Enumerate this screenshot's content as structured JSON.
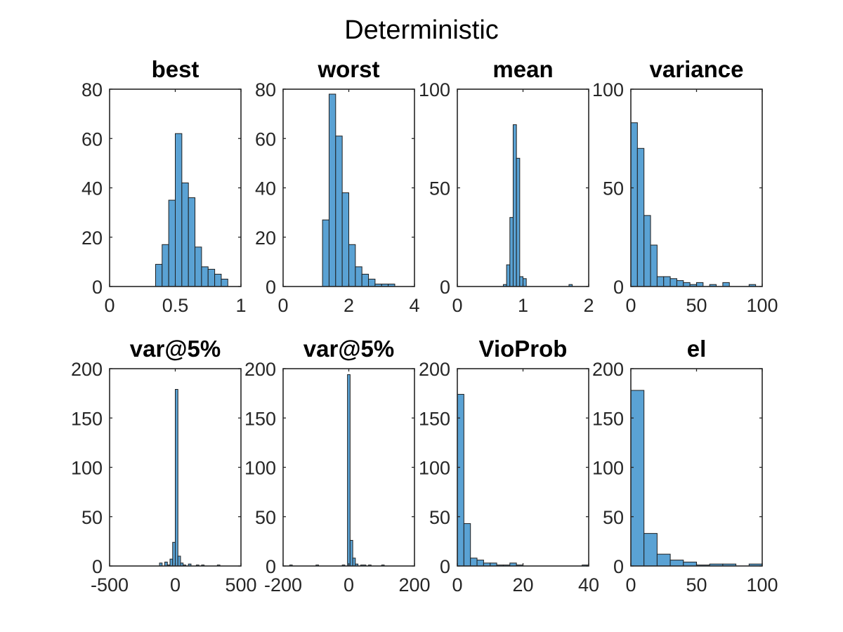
{
  "figure_title": "Deterministic",
  "colors": {
    "bar_fill": "#5aa2d4",
    "bar_edge": "#1f1f1f",
    "axis": "#262626"
  },
  "chart_data": [
    {
      "type": "bar",
      "title": "best",
      "xlim": [
        0,
        1
      ],
      "ylim": [
        0,
        80
      ],
      "xticks": [
        "0",
        "0.5",
        "1"
      ],
      "yticks": [
        "0",
        "20",
        "40",
        "60",
        "80"
      ],
      "bin_edges": [
        0.35,
        0.4,
        0.45,
        0.5,
        0.55,
        0.6,
        0.65,
        0.7,
        0.75,
        0.8,
        0.85,
        0.9
      ],
      "counts": [
        9,
        17,
        35,
        62,
        42,
        36,
        16,
        8,
        7,
        5,
        3
      ]
    },
    {
      "type": "bar",
      "title": "worst",
      "xlim": [
        0,
        4
      ],
      "ylim": [
        0,
        80
      ],
      "xticks": [
        "0",
        "2",
        "4"
      ],
      "yticks": [
        "0",
        "20",
        "40",
        "60",
        "80"
      ],
      "bin_edges": [
        1.2,
        1.4,
        1.6,
        1.8,
        2.0,
        2.2,
        2.4,
        2.6,
        2.8,
        3.0,
        3.2,
        3.4
      ],
      "counts": [
        27,
        78,
        61,
        38,
        17,
        8,
        5,
        3,
        1,
        1,
        1
      ]
    },
    {
      "type": "bar",
      "title": "mean",
      "xlim": [
        0,
        2
      ],
      "ylim": [
        0,
        100
      ],
      "xticks": [
        "0",
        "1",
        "2"
      ],
      "yticks": [
        "0",
        "50",
        "100"
      ],
      "bin_edges": [
        0.7,
        0.75,
        0.8,
        0.85,
        0.9,
        0.95,
        1.0,
        1.05,
        1.1,
        1.15,
        1.2,
        1.25,
        1.3,
        1.35,
        1.4,
        1.45,
        1.5,
        1.55,
        1.6,
        1.65,
        1.7,
        1.75
      ],
      "counts": [
        1,
        11,
        35,
        82,
        65,
        5,
        4,
        0,
        0,
        0,
        0,
        0,
        0,
        0,
        0,
        0,
        0,
        0,
        0,
        0,
        1
      ]
    },
    {
      "type": "bar",
      "title": "variance",
      "xlim": [
        0,
        100
      ],
      "ylim": [
        0,
        100
      ],
      "xticks": [
        "0",
        "50",
        "100"
      ],
      "yticks": [
        "0",
        "50",
        "100"
      ],
      "bin_edges": [
        0,
        5,
        10,
        15,
        20,
        25,
        30,
        35,
        40,
        45,
        50,
        55,
        60,
        65,
        70,
        75,
        80,
        85,
        90,
        95,
        100
      ],
      "counts": [
        83,
        70,
        36,
        21,
        5,
        5,
        4,
        3,
        2,
        1,
        2,
        0,
        1,
        0,
        2,
        0,
        0,
        0,
        1,
        0
      ]
    },
    {
      "type": "bar",
      "title": "var@5%",
      "xlim": [
        -500,
        500
      ],
      "ylim": [
        0,
        200
      ],
      "xticks": [
        "-500",
        "0",
        "500"
      ],
      "yticks": [
        "0",
        "50",
        "100",
        "150",
        "200"
      ],
      "bin_edges": [
        -120,
        -100,
        -80,
        -60,
        -40,
        -20,
        0,
        20,
        40,
        60,
        80,
        100,
        120,
        140,
        160,
        180,
        200,
        220,
        240,
        260,
        280,
        300,
        320,
        340,
        360,
        380
      ],
      "counts": [
        3,
        0,
        4,
        1,
        7,
        24,
        179,
        10,
        3,
        1,
        0,
        2,
        0,
        0,
        1,
        0,
        1,
        0,
        0,
        0,
        0,
        0,
        1,
        0,
        0
      ]
    },
    {
      "type": "bar",
      "title": "var@5%",
      "xlim": [
        -200,
        200
      ],
      "ylim": [
        0,
        200
      ],
      "xticks": [
        "-200",
        "0",
        "200"
      ],
      "yticks": [
        "0",
        "50",
        "100",
        "150",
        "200"
      ],
      "bin_edges": [
        -180,
        -172,
        -100,
        -92,
        -20,
        -12,
        -4,
        4,
        12,
        20,
        28,
        36,
        52,
        60,
        68,
        76,
        100,
        108
      ],
      "counts": [
        1,
        0,
        1,
        0,
        1,
        0,
        194,
        26,
        8,
        2,
        0,
        1,
        0,
        1,
        0,
        0,
        1
      ]
    },
    {
      "type": "bar",
      "title": "VioProb",
      "xlim": [
        0,
        40
      ],
      "ylim": [
        0,
        200
      ],
      "xticks": [
        "0",
        "20",
        "40"
      ],
      "yticks": [
        "0",
        "50",
        "100",
        "150",
        "200"
      ],
      "bin_edges": [
        0,
        2,
        4,
        6,
        8,
        10,
        12,
        14,
        16,
        18,
        20,
        22,
        24,
        26,
        28,
        30,
        32,
        34,
        36,
        38,
        40
      ],
      "counts": [
        174,
        43,
        8,
        6,
        3,
        3,
        1,
        1,
        3,
        1,
        0,
        0,
        0,
        0,
        0,
        0,
        0,
        0,
        0,
        1
      ]
    },
    {
      "type": "bar",
      "title": "el",
      "xlim": [
        0,
        100
      ],
      "ylim": [
        0,
        200
      ],
      "xticks": [
        "0",
        "50",
        "100"
      ],
      "yticks": [
        "0",
        "50",
        "100",
        "150",
        "200"
      ],
      "bin_edges": [
        0,
        10,
        20,
        30,
        40,
        50,
        60,
        70,
        80,
        90,
        100
      ],
      "counts": [
        178,
        33,
        12,
        6,
        4,
        1,
        2,
        2,
        0,
        2
      ]
    }
  ]
}
